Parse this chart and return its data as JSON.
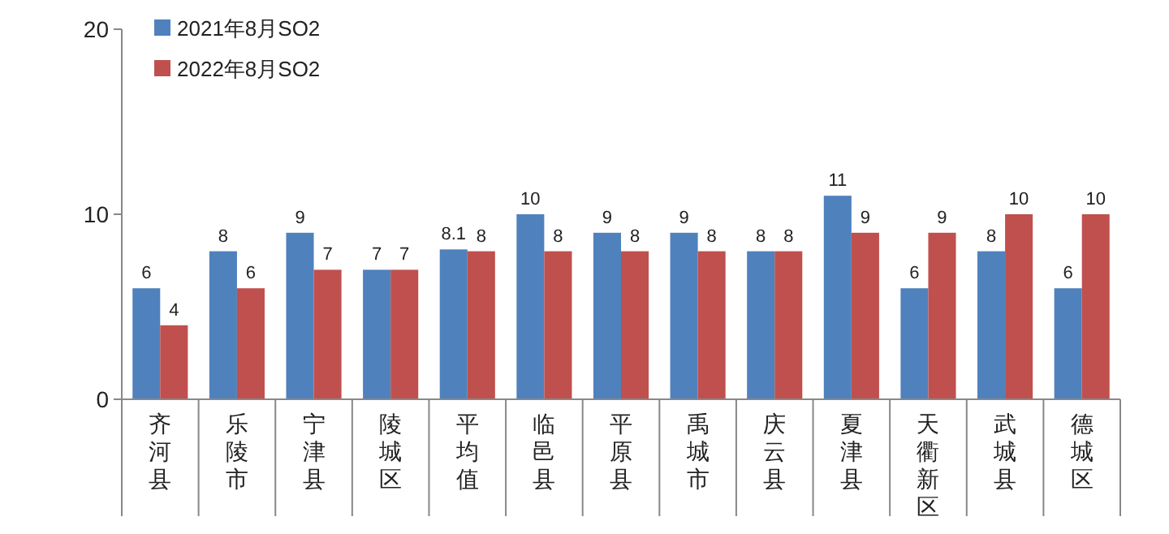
{
  "chart_data": {
    "type": "bar",
    "categories": [
      "齐河县",
      "乐陵市",
      "宁津县",
      "陵城区",
      "平均值",
      "临邑县",
      "平原县",
      "禹城市",
      "庆云县",
      "夏津县",
      "天衢新区",
      "武城县",
      "德城区"
    ],
    "series": [
      {
        "name": "2021年8月SO2",
        "color": "#4f81bd",
        "values": [
          6,
          8,
          9,
          7,
          8.1,
          10,
          9,
          9,
          8,
          11,
          6,
          8,
          6
        ]
      },
      {
        "name": "2022年8月SO2",
        "color": "#c0504d",
        "values": [
          4,
          6,
          7,
          7,
          8,
          8,
          8,
          8,
          8,
          9,
          9,
          10,
          10
        ]
      }
    ],
    "ylim": [
      0,
      20
    ],
    "yticks": [
      0,
      10,
      20
    ],
    "data_labels": true,
    "legend": "top left"
  }
}
